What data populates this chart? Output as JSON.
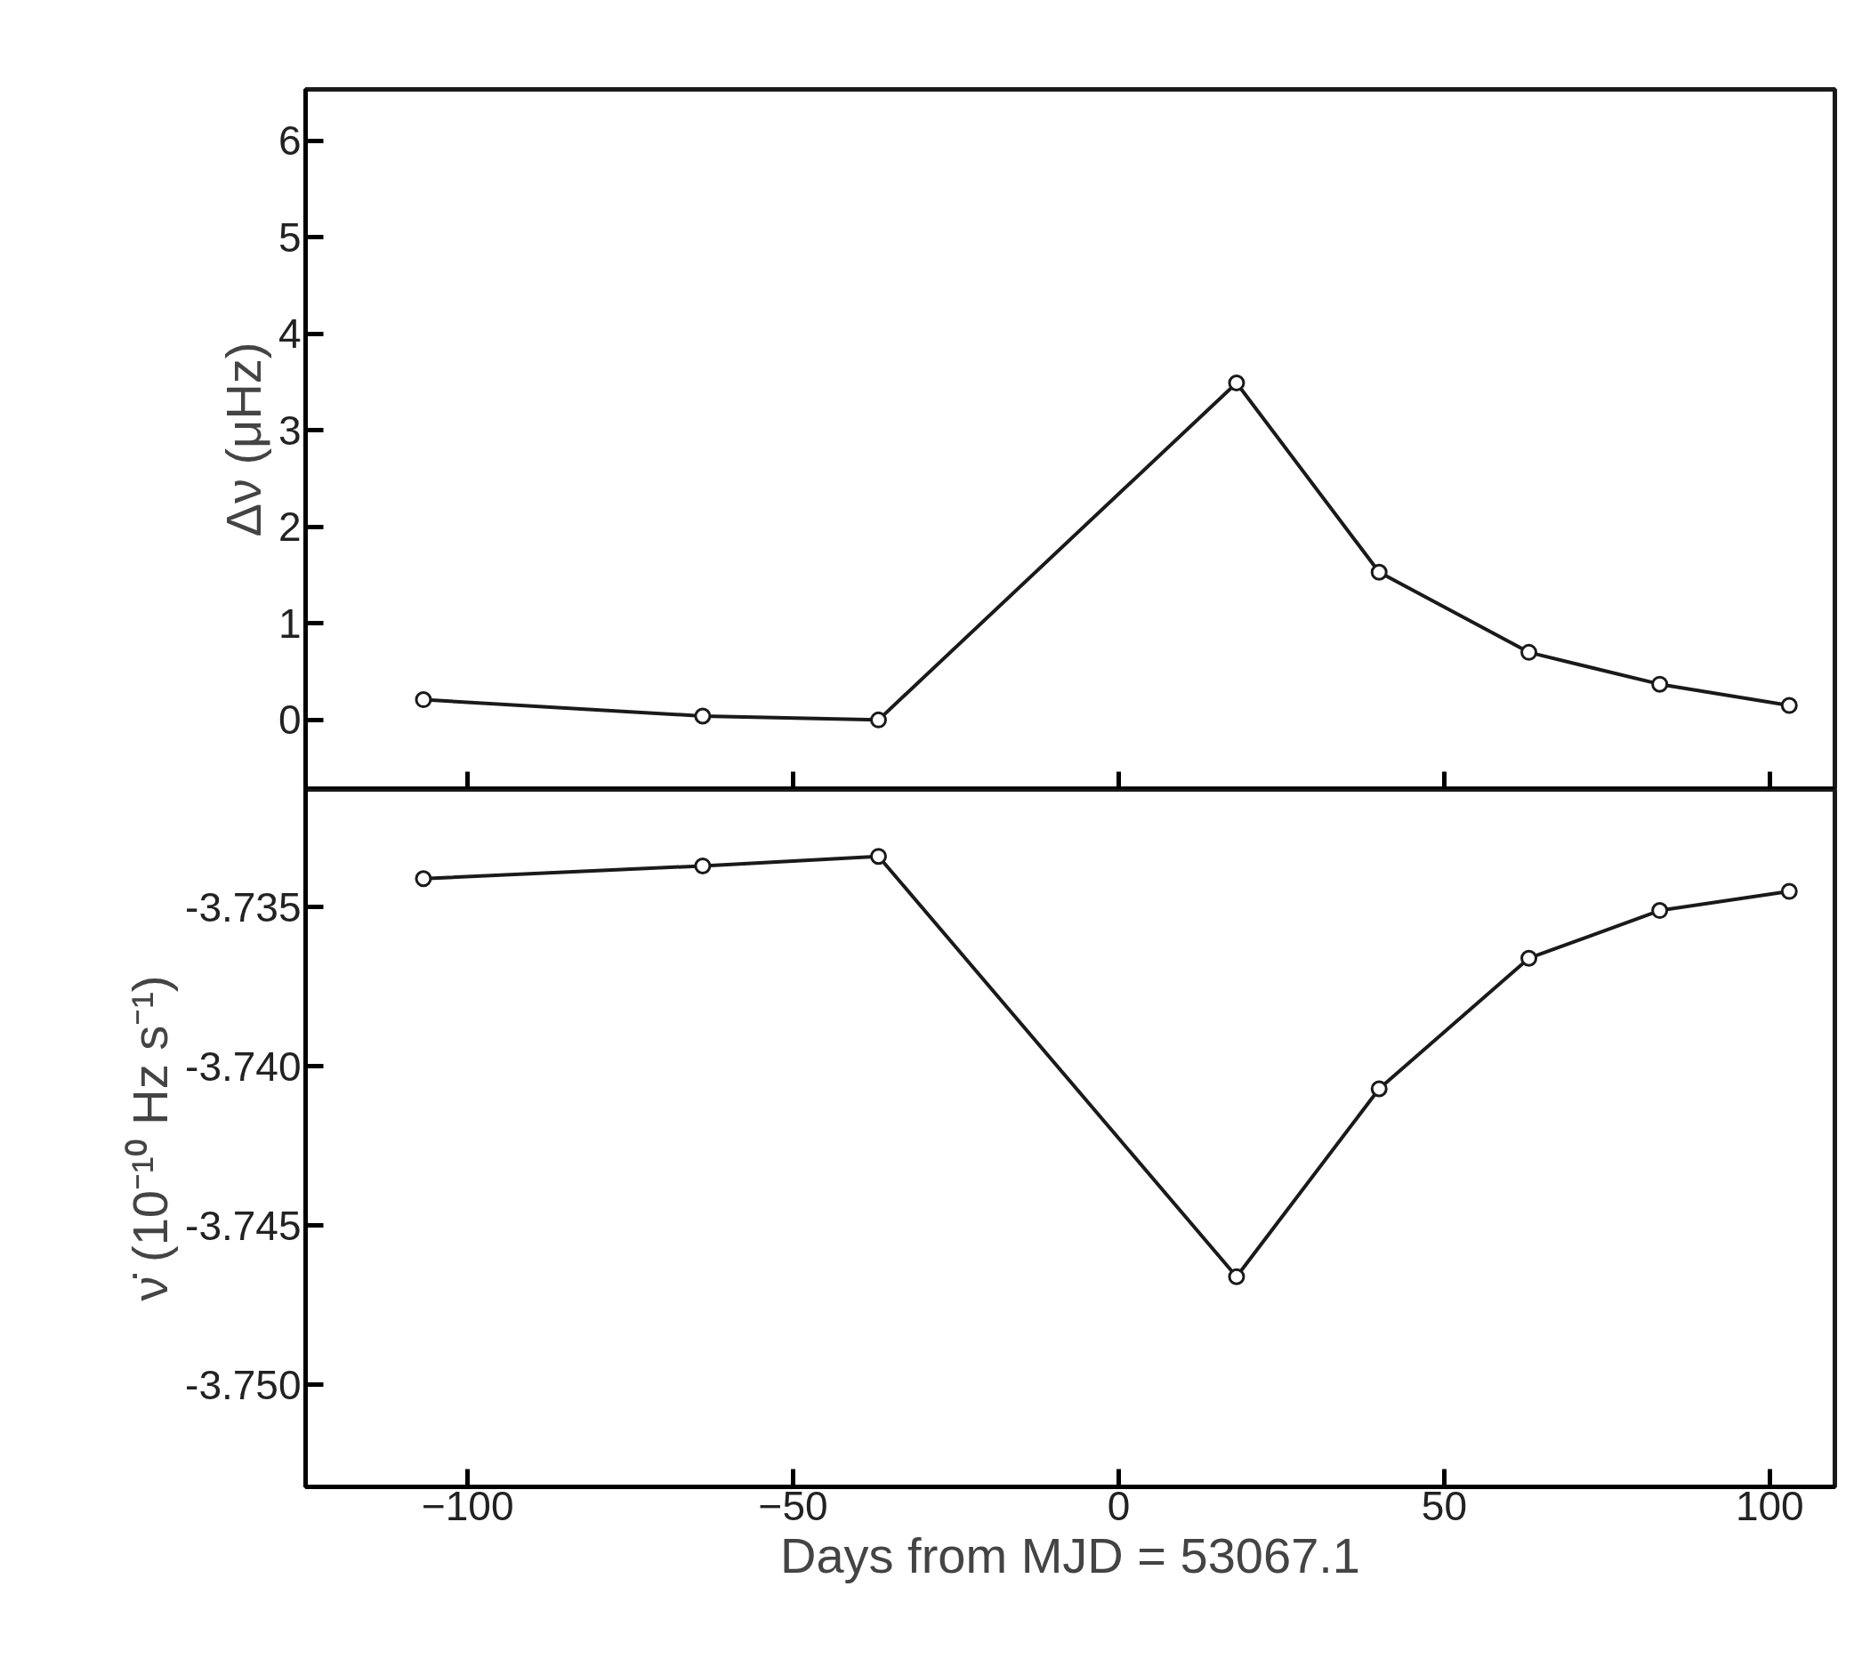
{
  "chart_data": [
    {
      "type": "line",
      "ylabel": "Δν (μHz)",
      "x": [
        -106.8,
        -63.9,
        -36.9,
        18.1,
        40,
        63,
        83.1,
        103
      ],
      "xlim": [
        -124.9,
        110
      ],
      "xticks": [
        -100,
        -50,
        0,
        50,
        100
      ],
      "ylim": [
        -0.72,
        6.53
      ],
      "yticks": [
        0,
        1,
        2,
        3,
        4,
        5,
        6
      ],
      "tick_labels": "y",
      "marker": "circle",
      "grid": false,
      "series": [
        {
          "color": "#1a1a1a",
          "values": [
            0.21,
            0.04,
            0.0,
            3.49,
            1.53,
            0.7,
            0.37,
            0.15
          ]
        }
      ]
    },
    {
      "type": "line",
      "xlabel": "Days from MJD = 53067.1",
      "ylabel": "ν̇ (10⁻¹⁰ Hz s⁻¹)",
      "x": [
        -106.8,
        -63.9,
        -36.9,
        18.1,
        40,
        63,
        83.1,
        103
      ],
      "xlim": [
        -124.9,
        110
      ],
      "xticks": [
        -100,
        -50,
        0,
        50,
        100
      ],
      "ylim": [
        -3.7532,
        -3.7313
      ],
      "yticks": [
        {
          "value": -3.735,
          "label": "-3.735"
        },
        {
          "value": -3.74,
          "label": "-3.740"
        },
        {
          "value": -3.745,
          "label": "-3.745"
        },
        {
          "value": -3.75,
          "label": "-3.750"
        }
      ],
      "marker": "circle",
      "grid": false,
      "series": [
        {
          "color": "#1a1a1a",
          "values": [
            -3.7341,
            -3.7337,
            -3.7334,
            -3.7466,
            -3.7407,
            -3.7366,
            -3.7351,
            -3.7345
          ]
        }
      ]
    }
  ]
}
